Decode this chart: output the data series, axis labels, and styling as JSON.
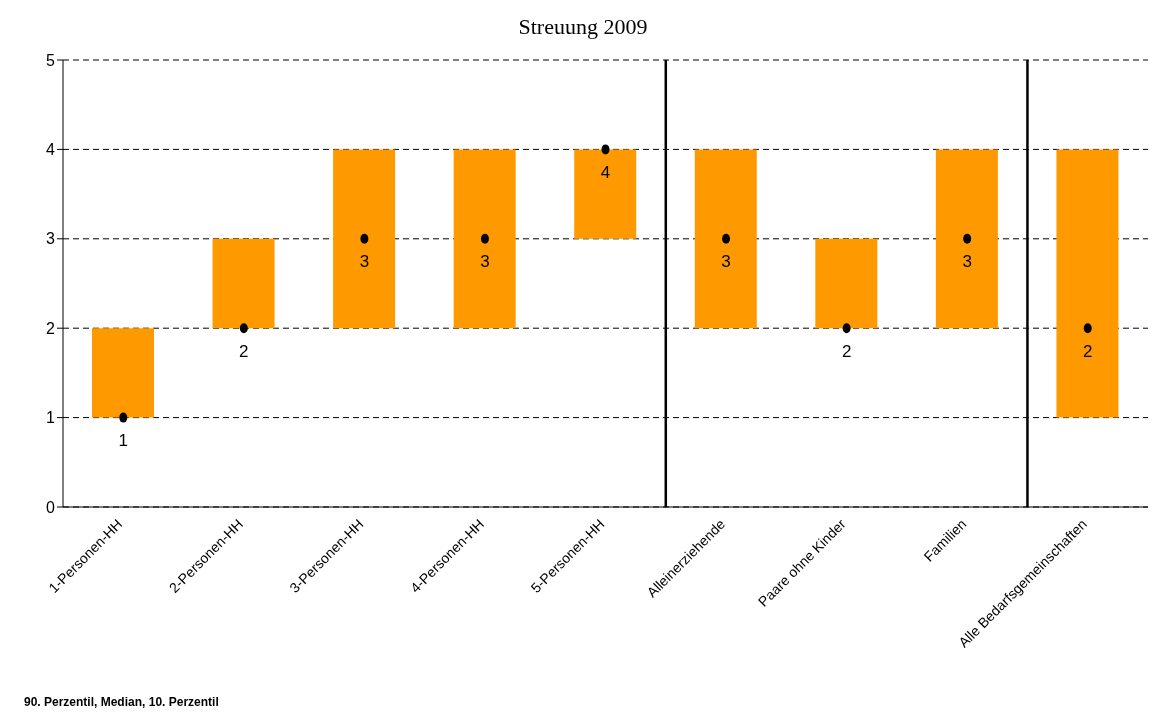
{
  "chart_data": {
    "type": "bar",
    "title": "Streuung 2009",
    "categories": [
      "1-Personen-HH",
      "2-Personen-HH",
      "3-Personen-HH",
      "4-Personen-HH",
      "5-Personen-HH",
      "Alleinerziehende",
      "Paare ohne Kinder",
      "Familien",
      "Alle Bedarfsgemeinschaften"
    ],
    "series": [
      {
        "type": "bar",
        "color": "#ff9900",
        "base": [
          1,
          2,
          2,
          2,
          3,
          2,
          2,
          2,
          1
        ],
        "values": [
          1,
          1,
          2,
          2,
          1,
          2,
          1,
          2,
          3
        ]
      },
      {
        "type": "scatter",
        "color": "#000000",
        "x": [
          "1-Personen-HH",
          "2-Personen-HH",
          "3-Personen-HH",
          "4-Personen-HH",
          "5-Personen-HH",
          "Alleinerziehende",
          "Paare ohne Kinder",
          "Familien",
          "Alle Bedarfsgemeinschaften"
        ],
        "values": [
          1,
          2,
          3,
          3,
          4,
          3,
          2,
          3,
          2
        ],
        "value_labels": [
          "1",
          "2",
          "3",
          "3",
          "4",
          "3",
          "2",
          "3",
          "2"
        ]
      }
    ],
    "ylim": [
      0,
      5
    ],
    "yticks": [
      0,
      1,
      2,
      3,
      4,
      5
    ],
    "grid": "y",
    "legend": false,
    "marker": "circle",
    "annotations": [
      "90. Perzentil, Median, 10. Perzentil"
    ]
  }
}
